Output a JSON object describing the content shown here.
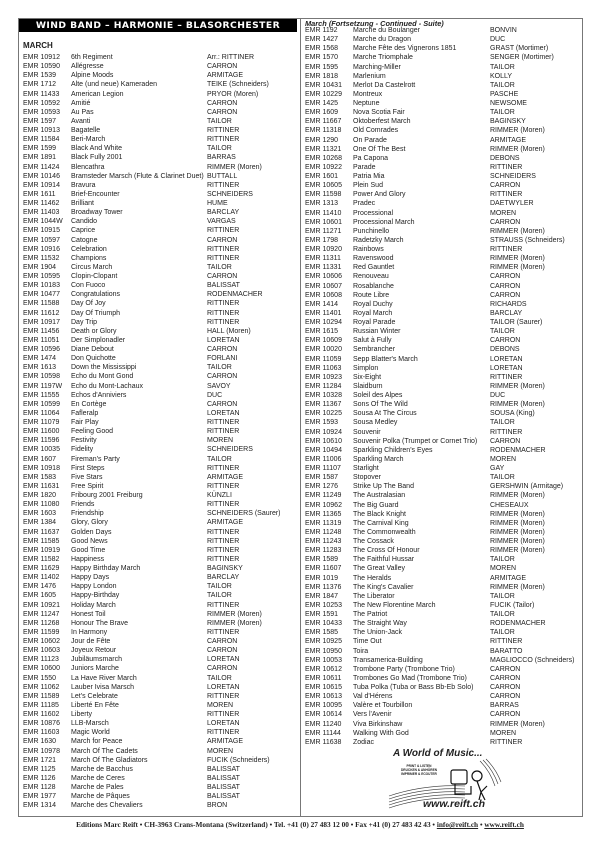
{
  "banner": "WIND BAND – HARMONIE – BLASORCHESTER",
  "section": "MARCH",
  "continued": "March (Fortsetzung - Continued - Suite)",
  "left_items": [
    [
      "EMR 10912",
      "6th Regiment",
      "Arr.: RITTINER"
    ],
    [
      "EMR 10590",
      "Allégresse",
      "CARRON"
    ],
    [
      "EMR 1539",
      "Alpine Moods",
      "ARMITAGE"
    ],
    [
      "EMR 1712",
      "Alte (und neue) Kameraden",
      "TEIKE (Schneiders)"
    ],
    [
      "EMR 11433",
      "American Legion",
      "PRYOR (Moren)"
    ],
    [
      "EMR 10592",
      "Amitié",
      "CARRON"
    ],
    [
      "EMR 10593",
      "Au Pas",
      "CARRON"
    ],
    [
      "EMR 1597",
      "Avanti",
      "TAILOR"
    ],
    [
      "EMR 10913",
      "Bagatelle",
      "RITTINER"
    ],
    [
      "EMR 11584",
      "Beri-March",
      "RITTINER"
    ],
    [
      "EMR 1599",
      "Black And White",
      "TAILOR"
    ],
    [
      "EMR 1891",
      "Black Fully 2001",
      "BARRAS"
    ],
    [
      "EMR 11424",
      "Blencathra",
      "RIMMER (Moren)"
    ],
    [
      "EMR 10146",
      "Bramsteder Marsch (Flute & Clarinet Duet)",
      "BUTTALL"
    ],
    [
      "EMR 10914",
      "Bravura",
      "RITTINER"
    ],
    [
      "EMR 1611",
      "Brief-Encounter",
      "SCHNEIDERS"
    ],
    [
      "EMR 11462",
      "Brilliant",
      "HUME"
    ],
    [
      "EMR 11403",
      "Broadway Tower",
      "BARCLAY"
    ],
    [
      "EMR 1044W",
      "Candido",
      "VARGAS"
    ],
    [
      "EMR 10915",
      "Caprice",
      "RITTINER"
    ],
    [
      "EMR 10597",
      "Catogne",
      "CARRON"
    ],
    [
      "EMR 10916",
      "Celebration",
      "RITTINER"
    ],
    [
      "EMR 11532",
      "Champions",
      "RITTINER"
    ],
    [
      "EMR 1904",
      "Circus March",
      "TAILOR"
    ],
    [
      "EMR 10595",
      "Clopin-Clopant",
      "CARRON"
    ],
    [
      "EMR 10183",
      "Con Fuoco",
      "BALISSAT"
    ],
    [
      "EMR 10477",
      "Congratulations",
      "RODENMACHER"
    ],
    [
      "EMR 11588",
      "Day Of Joy",
      "RITTINER"
    ],
    [
      "EMR 11612",
      "Day Of Triumph",
      "RITTINER"
    ],
    [
      "EMR 10917",
      "Day Trip",
      "RITTINER"
    ],
    [
      "EMR 11456",
      "Death or Glory",
      "HALL (Moren)"
    ],
    [
      "EMR 11051",
      "Der Simplonadler",
      "LORETAN"
    ],
    [
      "EMR 10596",
      "Diane Debout",
      "CARRON"
    ],
    [
      "EMR 1474",
      "Don Quichotte",
      "FORLANI"
    ],
    [
      "EMR 1613",
      "Down the Mississippi",
      "TAILOR"
    ],
    [
      "EMR 10598",
      "Echo du Mont Gond",
      "CARRON"
    ],
    [
      "EMR 1197W",
      "Echo du Mont-Lachaux",
      "SAVOY"
    ],
    [
      "EMR 11555",
      "Echos d'Anniviers",
      "DUC"
    ],
    [
      "EMR 10599",
      "En Cortège",
      "CARRON"
    ],
    [
      "EMR 11064",
      "Fafleralp",
      "LORETAN"
    ],
    [
      "EMR 11079",
      "Fair Play",
      "RITTINER"
    ],
    [
      "EMR 11600",
      "Feeling Good",
      "RITTINER"
    ],
    [
      "EMR 11596",
      "Festivity",
      "MOREN"
    ],
    [
      "EMR 10035",
      "Fidelity",
      "SCHNEIDERS"
    ],
    [
      "EMR 1607",
      "Fireman's Party",
      "TAILOR"
    ],
    [
      "EMR 10918",
      "First Steps",
      "RITTINER"
    ],
    [
      "EMR 1583",
      "Five Stars",
      "ARMITAGE"
    ],
    [
      "EMR 11631",
      "Free Spirit",
      "RITTINER"
    ],
    [
      "EMR 1820",
      "Fribourg 2001 Freiburg",
      "KÜNZLI"
    ],
    [
      "EMR 11080",
      "Friends",
      "RITTINER"
    ],
    [
      "EMR 1603",
      "Friendship",
      "SCHNEIDERS (Saurer)"
    ],
    [
      "EMR 1384",
      "Glory, Glory",
      "ARMITAGE"
    ],
    [
      "EMR 11637",
      "Golden Days",
      "RITTINER"
    ],
    [
      "EMR 11585",
      "Good News",
      "RITTINER"
    ],
    [
      "EMR 10919",
      "Good Time",
      "RITTINER"
    ],
    [
      "EMR 11582",
      "Happiness",
      "RITTINER"
    ],
    [
      "EMR 11629",
      "Happy Birthday March",
      "BAGINSKY"
    ],
    [
      "EMR 11402",
      "Happy Days",
      "BARCLAY"
    ],
    [
      "EMR 1476",
      "Happy London",
      "TAILOR"
    ],
    [
      "EMR 1605",
      "Happy-Birthday",
      "TAILOR"
    ],
    [
      "EMR 10921",
      "Holiday March",
      "RITTINER"
    ],
    [
      "EMR 11247",
      "Honest Toil",
      "RIMMER (Moren)"
    ],
    [
      "EMR 11268",
      "Honour The Brave",
      "RIMMER (Moren)"
    ],
    [
      "EMR 11599",
      "In Harmony",
      "RITTINER"
    ],
    [
      "EMR 10602",
      "Jour de Fête",
      "CARRON"
    ],
    [
      "EMR 10603",
      "Joyeux Retour",
      "CARRON"
    ],
    [
      "EMR 11123",
      "Jubiläumsmarch",
      "LORETAN"
    ],
    [
      "EMR 10600",
      "Juniors Marche",
      "CARRON"
    ],
    [
      "EMR 1550",
      "La Have River March",
      "TAILOR"
    ],
    [
      "EMR 11062",
      "Lauber Ivisa Marsch",
      "LORETAN"
    ],
    [
      "EMR 11589",
      "Let's Celebrate",
      "RITTINER"
    ],
    [
      "EMR 11185",
      "Liberté En Fête",
      "MOREN"
    ],
    [
      "EMR 11602",
      "Liberty",
      "RITTINER"
    ],
    [
      "EMR 10876",
      "LLB-Marsch",
      "LORETAN"
    ],
    [
      "EMR 11603",
      "Magic World",
      "RITTINER"
    ],
    [
      "EMR 1630",
      "March for Peace",
      "ARMITAGE"
    ],
    [
      "EMR 10978",
      "March Of The Cadets",
      "MOREN"
    ],
    [
      "EMR 1721",
      "March Of The Gladiators",
      "FUCIK (Schneiders)"
    ],
    [
      "EMR 1125",
      "Marche de Bacchus",
      "BALISSAT"
    ],
    [
      "EMR 1126",
      "Marche de Ceres",
      "BALISSAT"
    ],
    [
      "EMR 1128",
      "Marche de Pales",
      "BALISSAT"
    ],
    [
      "EMR 1977",
      "Marche de Pâques",
      "BALISSAT"
    ],
    [
      "EMR 1314",
      "Marche des Chevaliers",
      "BRON"
    ]
  ],
  "right_items": [
    [
      "EMR 1192",
      "Marche du Boulanger",
      "BONVIN"
    ],
    [
      "EMR 1427",
      "Marche du Dragon",
      "DUC"
    ],
    [
      "EMR 1568",
      "Marche Fête des Vignerons 1851",
      "GRAST (Mortimer)"
    ],
    [
      "EMR 1570",
      "Marche Triomphale",
      "SENGER (Mortimer)"
    ],
    [
      "EMR 1595",
      "Marching-Miller",
      "TAILOR"
    ],
    [
      "EMR 1818",
      "Marlenium",
      "KOLLY"
    ],
    [
      "EMR 10431",
      "Merlot Da Castelrott",
      "TAILOR"
    ],
    [
      "EMR 10229",
      "Montreux",
      "PASCHE"
    ],
    [
      "EMR 1425",
      "Neptune",
      "NEWSOME"
    ],
    [
      "EMR 1609",
      "Nova Scotia Fair",
      "TAILOR"
    ],
    [
      "EMR 11667",
      "Oktoberfest March",
      "BAGINSKY"
    ],
    [
      "EMR 11318",
      "Old Comrades",
      "RIMMER (Moren)"
    ],
    [
      "EMR 1290",
      "On Parade",
      "ARMITAGE"
    ],
    [
      "EMR 11321",
      "One Of The Best",
      "RIMMER (Moren)"
    ],
    [
      "EMR 10268",
      "Pa Capona",
      "DEBONS"
    ],
    [
      "EMR 10922",
      "Parade",
      "RITTINER"
    ],
    [
      "EMR 1601",
      "Patria Mia",
      "SCHNEIDERS"
    ],
    [
      "EMR 10605",
      "Plein Sud",
      "CARRON"
    ],
    [
      "EMR 11598",
      "Power And Glory",
      "RITTINER"
    ],
    [
      "EMR 1313",
      "Pradec",
      "DAETWYLER"
    ],
    [
      "EMR 11410",
      "Processional",
      "MOREN"
    ],
    [
      "EMR 10601",
      "Processional March",
      "CARRON"
    ],
    [
      "EMR 11271",
      "Punchinello",
      "RIMMER (Moren)"
    ],
    [
      "EMR 1798",
      "Radetzky March",
      "STRAUSS (Schneiders)"
    ],
    [
      "EMR 10920",
      "Rainbows",
      "RITTINER"
    ],
    [
      "EMR 11311",
      "Ravenswood",
      "RIMMER (Moren)"
    ],
    [
      "EMR 11331",
      "Red Gauntlet",
      "RIMMER (Moren)"
    ],
    [
      "EMR 10606",
      "Renouveau",
      "CARRON"
    ],
    [
      "EMR 10607",
      "Rosablanche",
      "CARRON"
    ],
    [
      "EMR 10608",
      "Route Libre",
      "CARRON"
    ],
    [
      "EMR 1414",
      "Royal Duchy",
      "RICHARDS"
    ],
    [
      "EMR 11401",
      "Royal March",
      "BARCLAY"
    ],
    [
      "EMR 10294",
      "Royal Parade",
      "TAILOR (Saurer)"
    ],
    [
      "EMR 1615",
      "Russian Winter",
      "TAILOR"
    ],
    [
      "EMR 10609",
      "Salut à Fully",
      "CARRON"
    ],
    [
      "EMR 10020",
      "Sembrancher",
      "DEBONS"
    ],
    [
      "EMR 11059",
      "Sepp Blatter's March",
      "LORETAN"
    ],
    [
      "EMR 11063",
      "Simplon",
      "LORETAN"
    ],
    [
      "EMR 10923",
      "Six-Eight",
      "RITTINER"
    ],
    [
      "EMR 11284",
      "Slaidburn",
      "RIMMER (Moren)"
    ],
    [
      "EMR 10328",
      "Soleil des Alpes",
      "DUC"
    ],
    [
      "EMR 11367",
      "Sons Of The Wild",
      "RIMMER (Moren)"
    ],
    [
      "EMR 10225",
      "Sousa At The Circus",
      "SOUSA (King)"
    ],
    [
      "EMR 1593",
      "Sousa Medley",
      "TAILOR"
    ],
    [
      "EMR 10924",
      "Souvenir",
      "RITTINER"
    ],
    [
      "EMR 10610",
      "Souvenir Polka (Trumpet or Cornet Trio)",
      "CARRON"
    ],
    [
      "EMR 10494",
      "Sparkling Children's Eyes",
      "RODENMACHER"
    ],
    [
      "EMR 11006",
      "Sparkling March",
      "MOREN"
    ],
    [
      "EMR 11107",
      "Starlight",
      "GAY"
    ],
    [
      "EMR 1587",
      "Stopover",
      "TAILOR"
    ],
    [
      "EMR 1276",
      "Strike Up The Band",
      "GERSHWIN (Armitage)"
    ],
    [
      "EMR 11249",
      "The Australasian",
      "RIMMER (Moren)"
    ],
    [
      "EMR 10962",
      "The Big Guard",
      "CHESEAUX"
    ],
    [
      "EMR 11365",
      "The Black Knight",
      "RIMMER (Moren)"
    ],
    [
      "EMR 11319",
      "The Carnival King",
      "RIMMER (Moren)"
    ],
    [
      "EMR 11248",
      "The Commonwealth",
      "RIMMER (Moren)"
    ],
    [
      "EMR 11243",
      "The Cossack",
      "RIMMER (Moren)"
    ],
    [
      "EMR 11283",
      "The Cross Of Honour",
      "RIMMER (Moren)"
    ],
    [
      "EMR 1589",
      "The Faithful Hussar",
      "TAILOR"
    ],
    [
      "EMR 11607",
      "The Great Valley",
      "MOREN"
    ],
    [
      "EMR 1019",
      "The Heralds",
      "ARMITAGE"
    ],
    [
      "EMR 11376",
      "The King's Cavalier",
      "RIMMER (Moren)"
    ],
    [
      "EMR 1847",
      "The Liberator",
      "TAILOR"
    ],
    [
      "EMR 10253",
      "The New Florentine March",
      "FUCIK (Tailor)"
    ],
    [
      "EMR 1591",
      "The Patriot",
      "TAILOR"
    ],
    [
      "EMR 10433",
      "The Straight Way",
      "RODENMACHER"
    ],
    [
      "EMR 1585",
      "The Union-Jack",
      "TAILOR"
    ],
    [
      "EMR 10925",
      "Time Out",
      "RITTINER"
    ],
    [
      "EMR 10950",
      "Toira",
      "BARATTO"
    ],
    [
      "EMR 10053",
      "Transamerica-Building",
      "MAGLIOCCO (Schneiders)"
    ],
    [
      "EMR 10612",
      "Trombone Party (Trombone Trio)",
      "CARRON"
    ],
    [
      "EMR 10611",
      "Trombones Go Mad (Trombone Trio)",
      "CARRON"
    ],
    [
      "EMR 10615",
      "Tuba Polka (Tuba or Bass Bb-Eb Solo)",
      "CARRON"
    ],
    [
      "EMR 10613",
      "Val d'Hérens",
      "CARRON"
    ],
    [
      "EMR 10095",
      "Valère et Tourbillon",
      "BARRAS"
    ],
    [
      "EMR 10614",
      "Vers l'Avenir",
      "CARRON"
    ],
    [
      "EMR 11240",
      "Viva Birkinshaw",
      "RIMMER (Moren)"
    ],
    [
      "EMR 11144",
      "Walking With God",
      "MOREN"
    ],
    [
      "EMR 11638",
      "Zodiac",
      "RITTINER"
    ]
  ],
  "logo": {
    "title": "A World of Music...",
    "lines": [
      "PRINT & LISTEN",
      "DRUCKEN & ANHÖREN",
      "IMPRIMER & ECOUTER"
    ],
    "url": "www.reift.ch"
  },
  "footer": {
    "address": "Editions Marc Reift • CH-3963 Crans-Montana (Switzerland) • Tel. +41 (0) 27 483 12 00 • Fax +41 (0) 27 483 42 43 • ",
    "email": "info@reift.ch",
    "sep": " • ",
    "website": "www.reift.ch"
  }
}
